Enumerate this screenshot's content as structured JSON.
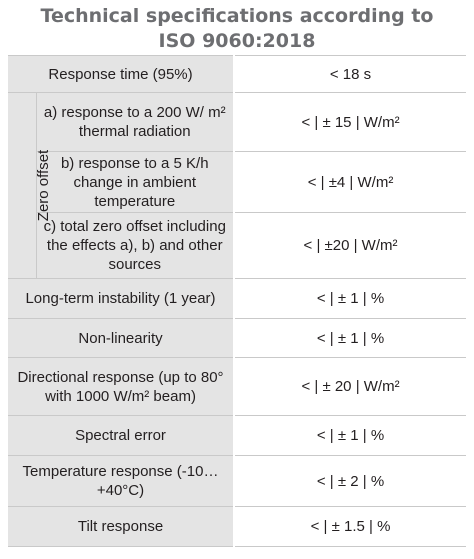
{
  "title": {
    "line1": "Technical specifications according to",
    "line2": "ISO 9060:2018"
  },
  "zero_offset_label": "Zero offset",
  "rows": [
    {
      "param": "Response time (95%)",
      "value": "< 18 s"
    },
    {
      "param": "a) response to a 200 W/ m² thermal radiation",
      "value": "< | ± 15 | W/m²"
    },
    {
      "param": "b) response to a 5 K/h change in ambient temperature",
      "value": "< | ±4 | W/m²"
    },
    {
      "param": "c) total zero offset including the effects a), b) and other sources",
      "value": "< | ±20 | W/m²"
    },
    {
      "param": "Long-term instability (1 year)",
      "value": "< | ± 1 | %"
    },
    {
      "param": "Non-linearity",
      "value": "< | ± 1 | %"
    },
    {
      "param": "Directional response (up to 80° with 1000 W/m² beam)",
      "value": "< | ± 20 | W/m²"
    },
    {
      "param": "Spectral error",
      "value": "< | ± 1 | %"
    },
    {
      "param": "Temperature response (-10…+40°C)",
      "value": "< | ± 2 | %"
    },
    {
      "param": "Tilt response",
      "value": "< | ± 1.5 | %"
    }
  ]
}
